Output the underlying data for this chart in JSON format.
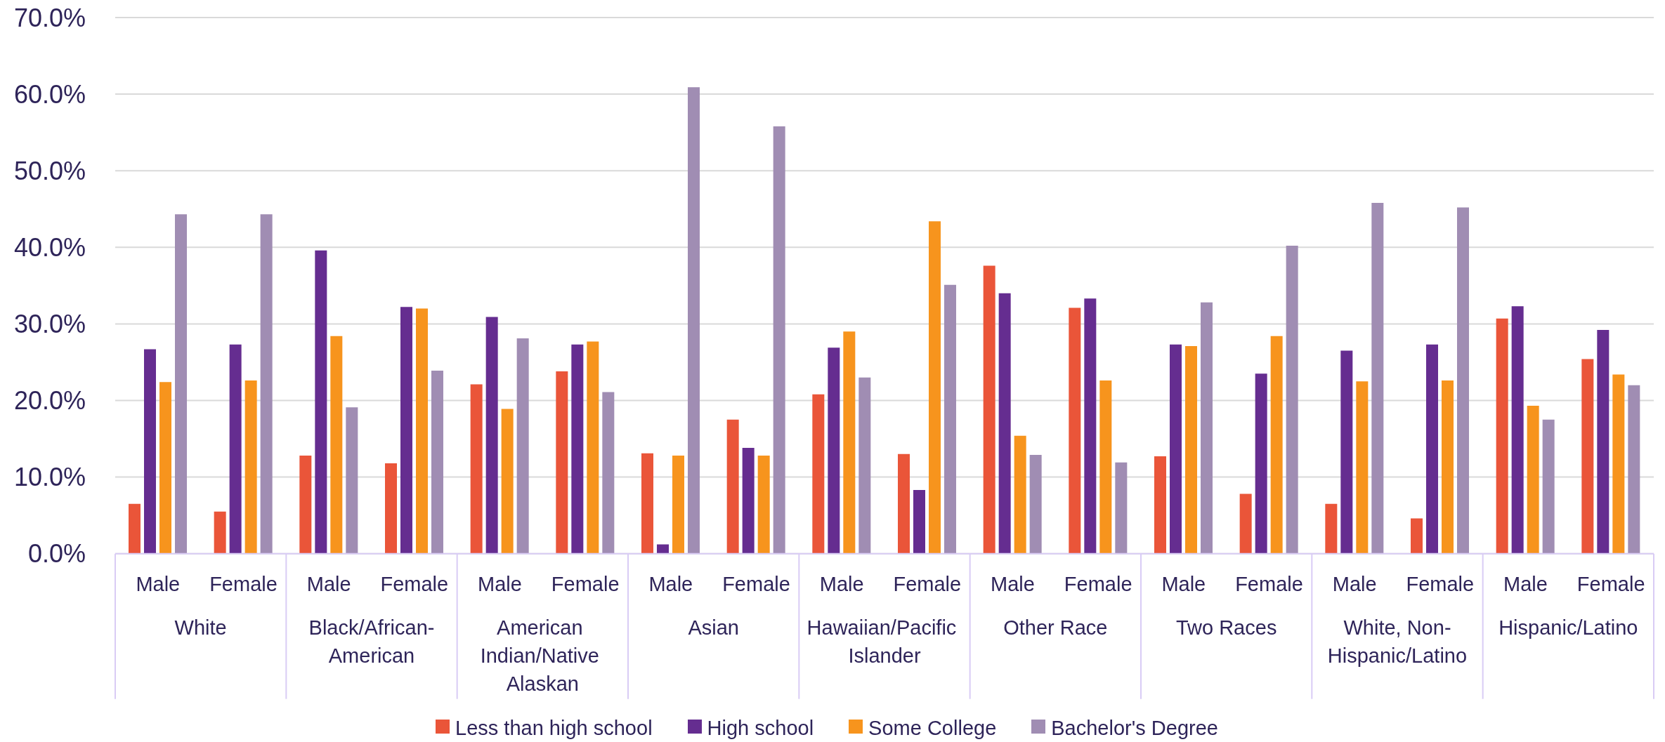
{
  "chart_data": {
    "type": "bar",
    "categories": [
      "Male",
      "Female",
      "Male",
      "Female",
      "Male",
      "Female",
      "Male",
      "Female",
      "Male",
      "Female",
      "Male",
      "Female",
      "Male",
      "Female",
      "Male",
      "Female",
      "Male",
      "Female"
    ],
    "annotations": [
      "White",
      "Black/African-American",
      "American Indian/Native Alaskan",
      "Asian",
      "Hawaiian/Pacific Islander",
      "Other Race",
      "Two Races",
      "White, Non-Hispanic/Latino",
      "Hispanic/Latino"
    ],
    "series": [
      {
        "name": "Less than high school",
        "color": "#ea5539",
        "values": [
          6.5,
          5.5,
          12.8,
          11.8,
          22.1,
          23.8,
          13.1,
          17.5,
          20.8,
          13.0,
          37.6,
          32.1,
          12.7,
          7.8,
          6.5,
          4.6,
          30.7,
          25.4
        ]
      },
      {
        "name": "High school",
        "color": "#652d90",
        "values": [
          26.7,
          27.3,
          39.6,
          32.2,
          30.9,
          27.3,
          1.2,
          13.8,
          26.9,
          8.3,
          34.0,
          33.3,
          27.3,
          23.5,
          26.5,
          27.3,
          32.3,
          29.2
        ]
      },
      {
        "name": "Some College",
        "color": "#f7941d",
        "values": [
          22.4,
          22.6,
          28.4,
          32.0,
          18.9,
          27.7,
          12.8,
          12.8,
          29.0,
          43.4,
          15.4,
          22.6,
          27.1,
          28.4,
          22.5,
          22.6,
          19.3,
          23.4
        ]
      },
      {
        "name": "Bachelor's Degree",
        "color": "#a08db3",
        "values": [
          44.3,
          44.3,
          19.1,
          23.9,
          28.1,
          21.1,
          60.9,
          55.8,
          23.0,
          35.1,
          12.9,
          11.9,
          32.8,
          40.2,
          45.8,
          45.2,
          17.5,
          22.0
        ]
      }
    ],
    "ylim": [
      0,
      70
    ],
    "yticks": [
      {
        "value": 0,
        "label": "0.0%"
      },
      {
        "value": 10,
        "label": "10.0%"
      },
      {
        "value": 20,
        "label": "20.0%"
      },
      {
        "value": 30,
        "label": "30.0%"
      },
      {
        "value": 40,
        "label": "40.0%"
      },
      {
        "value": 50,
        "label": "50.0%"
      },
      {
        "value": 60,
        "label": "60.0%"
      },
      {
        "value": 70,
        "label": "70.0%"
      }
    ],
    "grid": "y",
    "legend": "bottom"
  }
}
